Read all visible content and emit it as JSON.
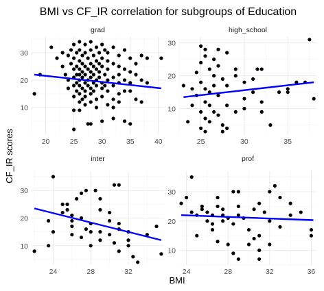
{
  "chart_data": {
    "type": "scatter",
    "title": "BMI vs CF_IR correlation for subgroups of Education",
    "xlabel": "BMI",
    "ylabel": "CF_IR scores",
    "grid": true,
    "regression_color": "#0000ff",
    "point_color": "#000000",
    "panels": [
      {
        "label": "grad",
        "xlim": [
          17.5,
          41
        ],
        "ylim": [
          0,
          36
        ],
        "xticks": [
          "20",
          "25",
          "30",
          "35",
          "40"
        ],
        "xtick_values": [
          20,
          25,
          30,
          35,
          40
        ],
        "yticks": [
          "10",
          "20",
          "30"
        ],
        "ytick_values": [
          10,
          20,
          30
        ],
        "fit": {
          "x": [
            18,
            40.5
          ],
          "y": [
            22,
            17
          ]
        },
        "points": [
          [
            18,
            15
          ],
          [
            19,
            22
          ],
          [
            21,
            32
          ],
          [
            22,
            28
          ],
          [
            23,
            30
          ],
          [
            23,
            25
          ],
          [
            23.5,
            22
          ],
          [
            24,
            29
          ],
          [
            24,
            20
          ],
          [
            24,
            17
          ],
          [
            24.5,
            31
          ],
          [
            24.5,
            26
          ],
          [
            25,
            33
          ],
          [
            25,
            28
          ],
          [
            25,
            24
          ],
          [
            25,
            21
          ],
          [
            25,
            18
          ],
          [
            25,
            14
          ],
          [
            25,
            9
          ],
          [
            25,
            2
          ],
          [
            25.5,
            30
          ],
          [
            25.5,
            25
          ],
          [
            25.5,
            22
          ],
          [
            25.5,
            19
          ],
          [
            25.5,
            16
          ],
          [
            26,
            34
          ],
          [
            26,
            31
          ],
          [
            26,
            27
          ],
          [
            26,
            24
          ],
          [
            26,
            22
          ],
          [
            26,
            20
          ],
          [
            26,
            18
          ],
          [
            26,
            15
          ],
          [
            26,
            12
          ],
          [
            26,
            9
          ],
          [
            26.5,
            29
          ],
          [
            26.5,
            26
          ],
          [
            26.5,
            23
          ],
          [
            26.5,
            21
          ],
          [
            26.5,
            17
          ],
          [
            26.5,
            13
          ],
          [
            27,
            33
          ],
          [
            27,
            30
          ],
          [
            27,
            25
          ],
          [
            27,
            22
          ],
          [
            27,
            19
          ],
          [
            27,
            16
          ],
          [
            27,
            14
          ],
          [
            27,
            11
          ],
          [
            27.5,
            28
          ],
          [
            27.5,
            24
          ],
          [
            27.5,
            20
          ],
          [
            27.5,
            18
          ],
          [
            27.5,
            4
          ],
          [
            28,
            34
          ],
          [
            28,
            31
          ],
          [
            28,
            26
          ],
          [
            28,
            23
          ],
          [
            28,
            21
          ],
          [
            28,
            17
          ],
          [
            28,
            15
          ],
          [
            28,
            12
          ],
          [
            28,
            4
          ],
          [
            28.5,
            29
          ],
          [
            28.5,
            25
          ],
          [
            28.5,
            22
          ],
          [
            28.5,
            19
          ],
          [
            28.5,
            16
          ],
          [
            29,
            32
          ],
          [
            29,
            27
          ],
          [
            29,
            24
          ],
          [
            29,
            20
          ],
          [
            29,
            18
          ],
          [
            29,
            13
          ],
          [
            29,
            10
          ],
          [
            29.5,
            30
          ],
          [
            29.5,
            26
          ],
          [
            29.5,
            23
          ],
          [
            29.5,
            21
          ],
          [
            30,
            33
          ],
          [
            30,
            28
          ],
          [
            30,
            25
          ],
          [
            30,
            19
          ],
          [
            30,
            17
          ],
          [
            30,
            14
          ],
          [
            30,
            5
          ],
          [
            30.5,
            31
          ],
          [
            30.5,
            22
          ],
          [
            30.5,
            18
          ],
          [
            31,
            30
          ],
          [
            31,
            27
          ],
          [
            31,
            24
          ],
          [
            31,
            20
          ],
          [
            31,
            16
          ],
          [
            31,
            11
          ],
          [
            32,
            32
          ],
          [
            32,
            26
          ],
          [
            32,
            21
          ],
          [
            32,
            18
          ],
          [
            32,
            13
          ],
          [
            32,
            10
          ],
          [
            32,
            6
          ],
          [
            33,
            29
          ],
          [
            33,
            25
          ],
          [
            33,
            22
          ],
          [
            33,
            19
          ],
          [
            33,
            15
          ],
          [
            33,
            12
          ],
          [
            34,
            31
          ],
          [
            34,
            24
          ],
          [
            34,
            20
          ],
          [
            34,
            16
          ],
          [
            34,
            5
          ],
          [
            35,
            28
          ],
          [
            35,
            23
          ],
          [
            35,
            19
          ],
          [
            35,
            16
          ],
          [
            35,
            4
          ],
          [
            36,
            26
          ],
          [
            36,
            22
          ],
          [
            36,
            13
          ],
          [
            37,
            29
          ],
          [
            37,
            20
          ],
          [
            37,
            12
          ],
          [
            38,
            28
          ],
          [
            38,
            19
          ],
          [
            40.5,
            28
          ]
        ]
      },
      {
        "label": "high_school",
        "xlim": [
          22.5,
          38.3
        ],
        "ylim": [
          2,
          32
        ],
        "xticks": [
          "25",
          "30",
          "35"
        ],
        "xtick_values": [
          25,
          30,
          35
        ],
        "yticks": [
          "10",
          "20",
          "30"
        ],
        "ytick_values": [
          10,
          20,
          30
        ],
        "fit": {
          "x": [
            23,
            38
          ],
          "y": [
            13.5,
            18
          ]
        },
        "points": [
          [
            23,
            17
          ],
          [
            23.5,
            6
          ],
          [
            24,
            16
          ],
          [
            24,
            11
          ],
          [
            24.5,
            21
          ],
          [
            24.5,
            14
          ],
          [
            25,
            29
          ],
          [
            25,
            24
          ],
          [
            25,
            18
          ],
          [
            25,
            9
          ],
          [
            25,
            4
          ],
          [
            25.5,
            28
          ],
          [
            25.5,
            26
          ],
          [
            25.5,
            16
          ],
          [
            25.5,
            12
          ],
          [
            25.5,
            7
          ],
          [
            25.5,
            3
          ],
          [
            26,
            22
          ],
          [
            26,
            15
          ],
          [
            26,
            11
          ],
          [
            26,
            6
          ],
          [
            26.5,
            25
          ],
          [
            26.5,
            20
          ],
          [
            26.5,
            17
          ],
          [
            26.5,
            9
          ],
          [
            27,
            28
          ],
          [
            27,
            23
          ],
          [
            27,
            14
          ],
          [
            27,
            8
          ],
          [
            27.5,
            19
          ],
          [
            27.5,
            5
          ],
          [
            27.5,
            3
          ],
          [
            28,
            27
          ],
          [
            28,
            17
          ],
          [
            28,
            11
          ],
          [
            28,
            4
          ],
          [
            29,
            22
          ],
          [
            29,
            20
          ],
          [
            29,
            9
          ],
          [
            30,
            18
          ],
          [
            30,
            13
          ],
          [
            30,
            10
          ],
          [
            31,
            19
          ],
          [
            31,
            15
          ],
          [
            31.5,
            22
          ],
          [
            32,
            22
          ],
          [
            32,
            12
          ],
          [
            32,
            9
          ],
          [
            33,
            5
          ],
          [
            34,
            15
          ],
          [
            35,
            15
          ],
          [
            35,
            16
          ],
          [
            36,
            18
          ],
          [
            37,
            18
          ],
          [
            37.5,
            31
          ],
          [
            38,
            13
          ]
        ]
      },
      {
        "label": "inter",
        "xlim": [
          21.7,
          35.8
        ],
        "ylim": [
          3,
          37
        ],
        "xticks": [
          "24",
          "28",
          "32"
        ],
        "xtick_values": [
          24,
          28,
          32
        ],
        "yticks": [
          "10",
          "20",
          "30"
        ],
        "ytick_values": [
          10,
          20,
          30
        ],
        "fit": {
          "x": [
            22,
            35.5
          ],
          "y": [
            23.5,
            12
          ]
        },
        "points": [
          [
            22,
            8
          ],
          [
            23.5,
            19
          ],
          [
            23.5,
            10
          ],
          [
            24,
            35
          ],
          [
            24,
            15
          ],
          [
            25,
            25
          ],
          [
            25,
            22
          ],
          [
            25.5,
            25
          ],
          [
            25.5,
            23
          ],
          [
            26,
            21
          ],
          [
            26,
            19
          ],
          [
            26,
            17
          ],
          [
            26,
            14
          ],
          [
            26.5,
            27
          ],
          [
            27,
            29
          ],
          [
            27,
            20
          ],
          [
            27,
            13
          ],
          [
            27.5,
            30
          ],
          [
            27.5,
            16
          ],
          [
            28,
            18
          ],
          [
            28,
            15
          ],
          [
            28,
            10
          ],
          [
            28.5,
            30
          ],
          [
            29,
            27
          ],
          [
            29,
            23
          ],
          [
            29,
            15
          ],
          [
            29,
            12
          ],
          [
            30,
            22
          ],
          [
            30,
            19
          ],
          [
            30,
            14
          ],
          [
            30.5,
            32
          ],
          [
            30.5,
            11
          ],
          [
            31,
            32
          ],
          [
            31,
            18
          ],
          [
            31,
            16
          ],
          [
            31,
            8
          ],
          [
            32,
            15
          ],
          [
            32,
            12
          ],
          [
            32,
            10
          ],
          [
            32.5,
            6
          ],
          [
            33,
            4
          ],
          [
            34,
            14
          ],
          [
            35,
            17
          ],
          [
            35.5,
            7
          ]
        ]
      },
      {
        "label": "prof",
        "xlim": [
          23.3,
          36.5
        ],
        "ylim": [
          5,
          37
        ],
        "xticks": [
          "24",
          "28",
          "32",
          "36"
        ],
        "xtick_values": [
          24,
          28,
          32,
          36
        ],
        "yticks": [
          "10",
          "20",
          "30"
        ],
        "ytick_values": [
          10,
          20,
          30
        ],
        "fit": {
          "x": [
            23.5,
            36.2
          ],
          "y": [
            22,
            20.3
          ]
        },
        "points": [
          [
            23.5,
            26
          ],
          [
            24,
            28
          ],
          [
            24.5,
            35
          ],
          [
            24.5,
            23
          ],
          [
            25,
            22
          ],
          [
            25,
            15
          ],
          [
            25.5,
            25
          ],
          [
            25.5,
            24
          ],
          [
            26,
            23
          ],
          [
            26,
            20
          ],
          [
            26.5,
            22
          ],
          [
            26.5,
            19
          ],
          [
            26.5,
            17
          ],
          [
            27,
            28
          ],
          [
            27,
            25
          ],
          [
            27,
            13
          ],
          [
            27.5,
            24
          ],
          [
            27.5,
            22
          ],
          [
            27.5,
            20
          ],
          [
            28,
            21
          ],
          [
            28,
            12
          ],
          [
            28.5,
            30
          ],
          [
            28.5,
            19
          ],
          [
            28.5,
            9
          ],
          [
            29,
            30
          ],
          [
            29,
            25
          ],
          [
            29,
            22
          ],
          [
            29,
            7
          ],
          [
            29.5,
            21
          ],
          [
            30,
            17
          ],
          [
            30,
            12
          ],
          [
            30.5,
            14
          ],
          [
            30.5,
            24
          ],
          [
            31,
            26
          ],
          [
            31,
            15
          ],
          [
            31,
            10
          ],
          [
            31,
            7
          ],
          [
            31.5,
            23
          ],
          [
            32,
            30
          ],
          [
            32,
            20
          ],
          [
            32,
            12
          ],
          [
            32.5,
            32
          ],
          [
            33,
            28
          ],
          [
            33,
            18
          ],
          [
            34,
            22
          ],
          [
            34,
            26
          ],
          [
            35,
            23
          ],
          [
            36,
            17
          ],
          [
            36,
            15
          ]
        ]
      }
    ]
  }
}
